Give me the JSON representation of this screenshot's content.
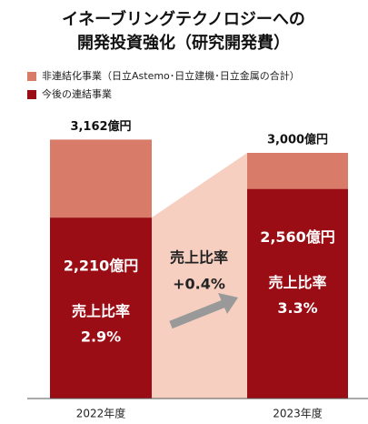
{
  "chart_data": {
    "type": "stacked-bar",
    "title": [
      "イネーブリングテクノロジーへの",
      "開発投資強化（研究開発費）"
    ],
    "categories": [
      "2022年度",
      "2023年度"
    ],
    "series": [
      {
        "name": "今後の連結事業",
        "color": "#9b0d14",
        "values": [
          2210,
          2560
        ],
        "value_labels": [
          "2,210億円",
          "2,560億円"
        ]
      },
      {
        "name": "非連結化事業（日立Astemo･日立建機･日立金属の合計）",
        "color": "#d97b69",
        "values": [
          952,
          440
        ]
      }
    ],
    "totals": [
      3162,
      3000
    ],
    "total_labels": [
      "3,162億円",
      "3,000億円"
    ],
    "ratio_label": "売上比率",
    "ratios": [
      "2.9%",
      "3.3%"
    ],
    "change": "+0.4%",
    "ylim": [
      0,
      3500
    ],
    "legend": "top-left"
  }
}
